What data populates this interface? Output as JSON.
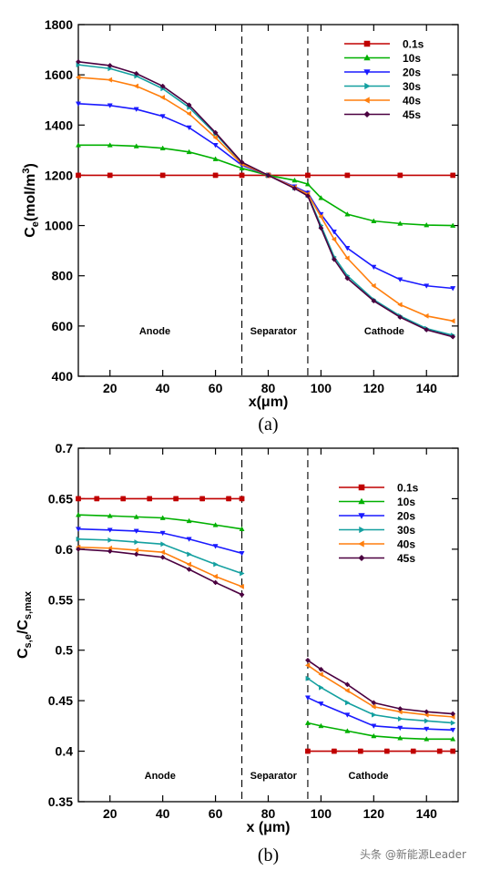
{
  "chart_data": [
    {
      "type": "line",
      "caption": "(a)",
      "xlabel": "x(μm)",
      "ylabel": "C_e(mol/m^3)",
      "xlim": [
        8,
        152
      ],
      "ylim": [
        400,
        1800
      ],
      "xticks": [
        20,
        40,
        60,
        80,
        100,
        120,
        140
      ],
      "yticks": [
        400,
        600,
        800,
        1000,
        1200,
        1400,
        1600,
        1800
      ],
      "region_boundaries": [
        70,
        95
      ],
      "regions": [
        {
          "label": "Anode",
          "x": 37
        },
        {
          "label": "Separator",
          "x": 82
        },
        {
          "label": "Cathode",
          "x": 124
        }
      ],
      "legend_position": "top-right",
      "grid": false,
      "series": [
        {
          "name": "0.1s",
          "color": "#c00000",
          "marker": "square",
          "x": [
            8,
            20,
            40,
            60,
            70,
            80,
            95,
            110,
            130,
            150
          ],
          "y": [
            1200,
            1200,
            1200,
            1200,
            1200,
            1200,
            1200,
            1200,
            1200,
            1200
          ]
        },
        {
          "name": "10s",
          "color": "#00b000",
          "marker": "triangle-up",
          "x": [
            8,
            20,
            30,
            40,
            50,
            60,
            70,
            80,
            90,
            95,
            100,
            110,
            120,
            130,
            140,
            150
          ],
          "y": [
            1320,
            1320,
            1316,
            1308,
            1293,
            1265,
            1228,
            1200,
            1180,
            1165,
            1110,
            1045,
            1018,
            1008,
            1002,
            1000
          ]
        },
        {
          "name": "20s",
          "color": "#1a1aff",
          "marker": "triangle-down",
          "x": [
            8,
            20,
            30,
            40,
            50,
            60,
            70,
            80,
            90,
            95,
            100,
            105,
            110,
            120,
            130,
            140,
            150
          ],
          "y": [
            1485,
            1478,
            1463,
            1435,
            1390,
            1320,
            1240,
            1200,
            1155,
            1130,
            1045,
            975,
            910,
            835,
            785,
            760,
            750
          ]
        },
        {
          "name": "30s",
          "color": "#14a0a0",
          "marker": "triangle-right",
          "x": [
            8,
            20,
            30,
            40,
            50,
            60,
            70,
            80,
            90,
            95,
            100,
            105,
            110,
            120,
            130,
            140,
            150
          ],
          "y": [
            1640,
            1625,
            1595,
            1545,
            1470,
            1365,
            1250,
            1200,
            1150,
            1120,
            1000,
            875,
            800,
            705,
            640,
            590,
            563
          ]
        },
        {
          "name": "40s",
          "color": "#ff7f0e",
          "marker": "triangle-left",
          "x": [
            8,
            20,
            30,
            40,
            50,
            60,
            70,
            80,
            90,
            95,
            100,
            105,
            110,
            120,
            130,
            140,
            150
          ],
          "y": [
            1590,
            1580,
            1555,
            1510,
            1445,
            1350,
            1245,
            1200,
            1152,
            1125,
            1035,
            945,
            870,
            760,
            685,
            640,
            620
          ]
        },
        {
          "name": "45s",
          "color": "#4b0040",
          "marker": "diamond",
          "x": [
            8,
            20,
            30,
            40,
            50,
            60,
            70,
            80,
            90,
            95,
            100,
            105,
            110,
            120,
            130,
            140,
            150
          ],
          "y": [
            1652,
            1637,
            1605,
            1555,
            1480,
            1370,
            1252,
            1200,
            1148,
            1118,
            990,
            865,
            790,
            700,
            635,
            585,
            557
          ]
        }
      ]
    },
    {
      "type": "line",
      "caption": "(b)",
      "xlabel": "x (μm)",
      "ylabel": "C_s,e/C_s,max",
      "xlim": [
        8,
        152
      ],
      "ylim": [
        0.35,
        0.7
      ],
      "xticks": [
        20,
        40,
        60,
        80,
        100,
        120,
        140
      ],
      "yticks": [
        0.35,
        0.4,
        0.45,
        0.5,
        0.55,
        0.6,
        0.65,
        0.7
      ],
      "region_boundaries": [
        70,
        95
      ],
      "regions": [
        {
          "label": "Anode",
          "x": 39
        },
        {
          "label": "Separator",
          "x": 82
        },
        {
          "label": "Cathode",
          "x": 118
        }
      ],
      "legend_position": "top-right",
      "grid": false,
      "series": [
        {
          "name": "0.1s",
          "color": "#c00000",
          "marker": "square",
          "segments": [
            {
              "x": [
                8,
                15,
                25,
                35,
                45,
                55,
                65,
                70
              ],
              "y": [
                0.65,
                0.65,
                0.65,
                0.65,
                0.65,
                0.65,
                0.65,
                0.65
              ]
            },
            {
              "x": [
                95,
                105,
                115,
                125,
                135,
                145,
                150
              ],
              "y": [
                0.4,
                0.4,
                0.4,
                0.4,
                0.4,
                0.4,
                0.4
              ]
            }
          ]
        },
        {
          "name": "10s",
          "color": "#00b000",
          "marker": "triangle-up",
          "segments": [
            {
              "x": [
                8,
                20,
                30,
                40,
                50,
                60,
                70
              ],
              "y": [
                0.634,
                0.633,
                0.632,
                0.631,
                0.628,
                0.624,
                0.62
              ]
            },
            {
              "x": [
                95,
                100,
                110,
                120,
                130,
                140,
                150
              ],
              "y": [
                0.428,
                0.425,
                0.42,
                0.415,
                0.413,
                0.412,
                0.412
              ]
            }
          ]
        },
        {
          "name": "20s",
          "color": "#1a1aff",
          "marker": "triangle-down",
          "segments": [
            {
              "x": [
                8,
                20,
                30,
                40,
                50,
                60,
                70
              ],
              "y": [
                0.62,
                0.619,
                0.618,
                0.616,
                0.61,
                0.603,
                0.596
              ]
            },
            {
              "x": [
                95,
                100,
                110,
                120,
                130,
                140,
                150
              ],
              "y": [
                0.453,
                0.447,
                0.436,
                0.425,
                0.423,
                0.422,
                0.421
              ]
            }
          ]
        },
        {
          "name": "30s",
          "color": "#14a0a0",
          "marker": "triangle-right",
          "segments": [
            {
              "x": [
                8,
                20,
                30,
                40,
                50,
                60,
                70
              ],
              "y": [
                0.61,
                0.609,
                0.607,
                0.605,
                0.595,
                0.585,
                0.576
              ]
            },
            {
              "x": [
                95,
                100,
                110,
                120,
                130,
                140,
                150
              ],
              "y": [
                0.472,
                0.463,
                0.448,
                0.436,
                0.432,
                0.43,
                0.428
              ]
            }
          ]
        },
        {
          "name": "40s",
          "color": "#ff7f0e",
          "marker": "triangle-left",
          "segments": [
            {
              "x": [
                8,
                20,
                30,
                40,
                50,
                60,
                70
              ],
              "y": [
                0.602,
                0.601,
                0.599,
                0.597,
                0.585,
                0.573,
                0.563
              ]
            },
            {
              "x": [
                95,
                100,
                110,
                120,
                130,
                140,
                150
              ],
              "y": [
                0.485,
                0.476,
                0.46,
                0.444,
                0.439,
                0.436,
                0.434
              ]
            }
          ]
        },
        {
          "name": "45s",
          "color": "#4b0040",
          "marker": "diamond",
          "segments": [
            {
              "x": [
                8,
                20,
                30,
                40,
                50,
                60,
                70
              ],
              "y": [
                0.6,
                0.598,
                0.595,
                0.592,
                0.58,
                0.567,
                0.555
              ]
            },
            {
              "x": [
                95,
                100,
                110,
                120,
                130,
                140,
                150
              ],
              "y": [
                0.49,
                0.481,
                0.466,
                0.448,
                0.442,
                0.439,
                0.437
              ]
            }
          ]
        }
      ]
    }
  ],
  "watermark": "头条 @新能源Leader"
}
